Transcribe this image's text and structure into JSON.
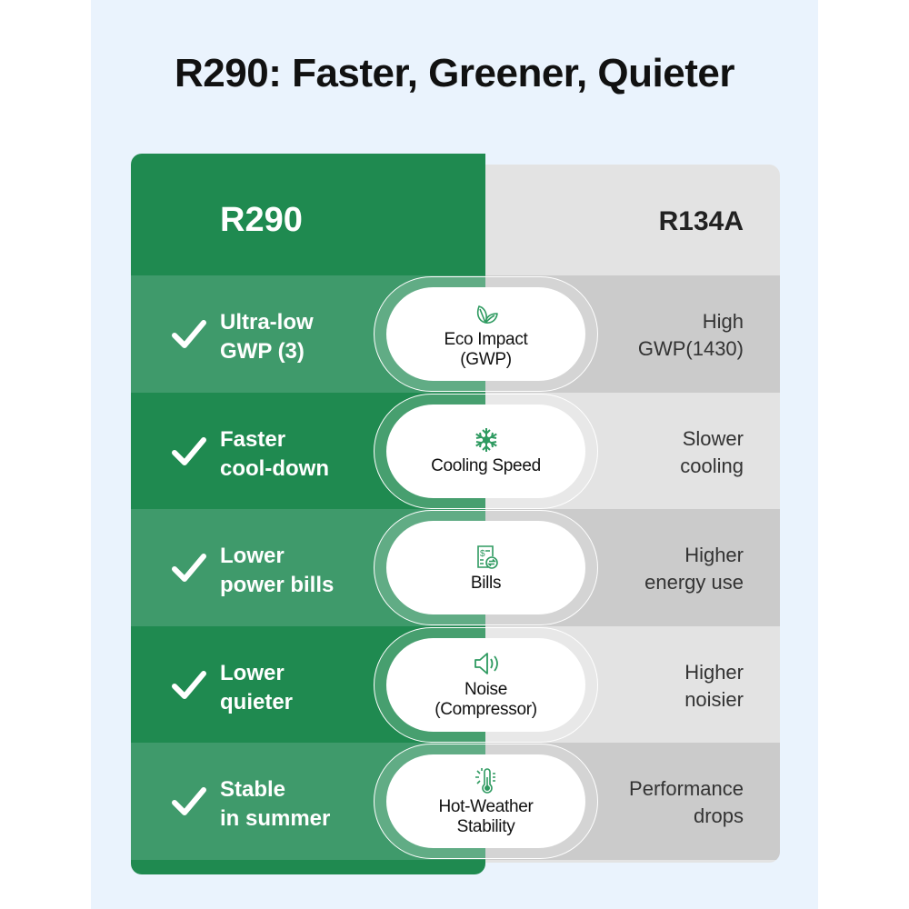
{
  "title": "R290: Faster, Greener, Quieter",
  "colors": {
    "green": "#1f8a50",
    "green_light": "#3f9a6b",
    "icon": "#2e9a60",
    "grey": "#e3e3e3",
    "grey_dark": "#cbcbcb",
    "background": "#eaf3fd"
  },
  "columns": {
    "left": "R290",
    "right": "R134A"
  },
  "rows": [
    {
      "icon": "leaves-icon",
      "category": [
        "Eco Impact",
        "(GWP)"
      ],
      "r290": [
        "Ultra-low",
        "GWP (3)"
      ],
      "r134a": [
        "High",
        "GWP(1430)"
      ]
    },
    {
      "icon": "snowflake-icon",
      "category": [
        "Cooling Speed"
      ],
      "r290": [
        "Faster",
        "cool-down"
      ],
      "r134a": [
        "Slower",
        "cooling"
      ]
    },
    {
      "icon": "bill-exchange-icon",
      "category": [
        "Bills"
      ],
      "r290": [
        "Lower",
        "power bills"
      ],
      "r134a": [
        "Higher",
        "energy use"
      ]
    },
    {
      "icon": "speaker-icon",
      "category": [
        "Noise",
        "(Compressor)"
      ],
      "r290": [
        "Lower",
        "quieter"
      ],
      "r134a": [
        "Higher",
        "noisier"
      ]
    },
    {
      "icon": "thermometer-sun-icon",
      "category": [
        "Hot-Weather",
        "Stability"
      ],
      "r290": [
        "Stable",
        "in summer"
      ],
      "r134a": [
        "Performance",
        "drops"
      ]
    }
  ]
}
